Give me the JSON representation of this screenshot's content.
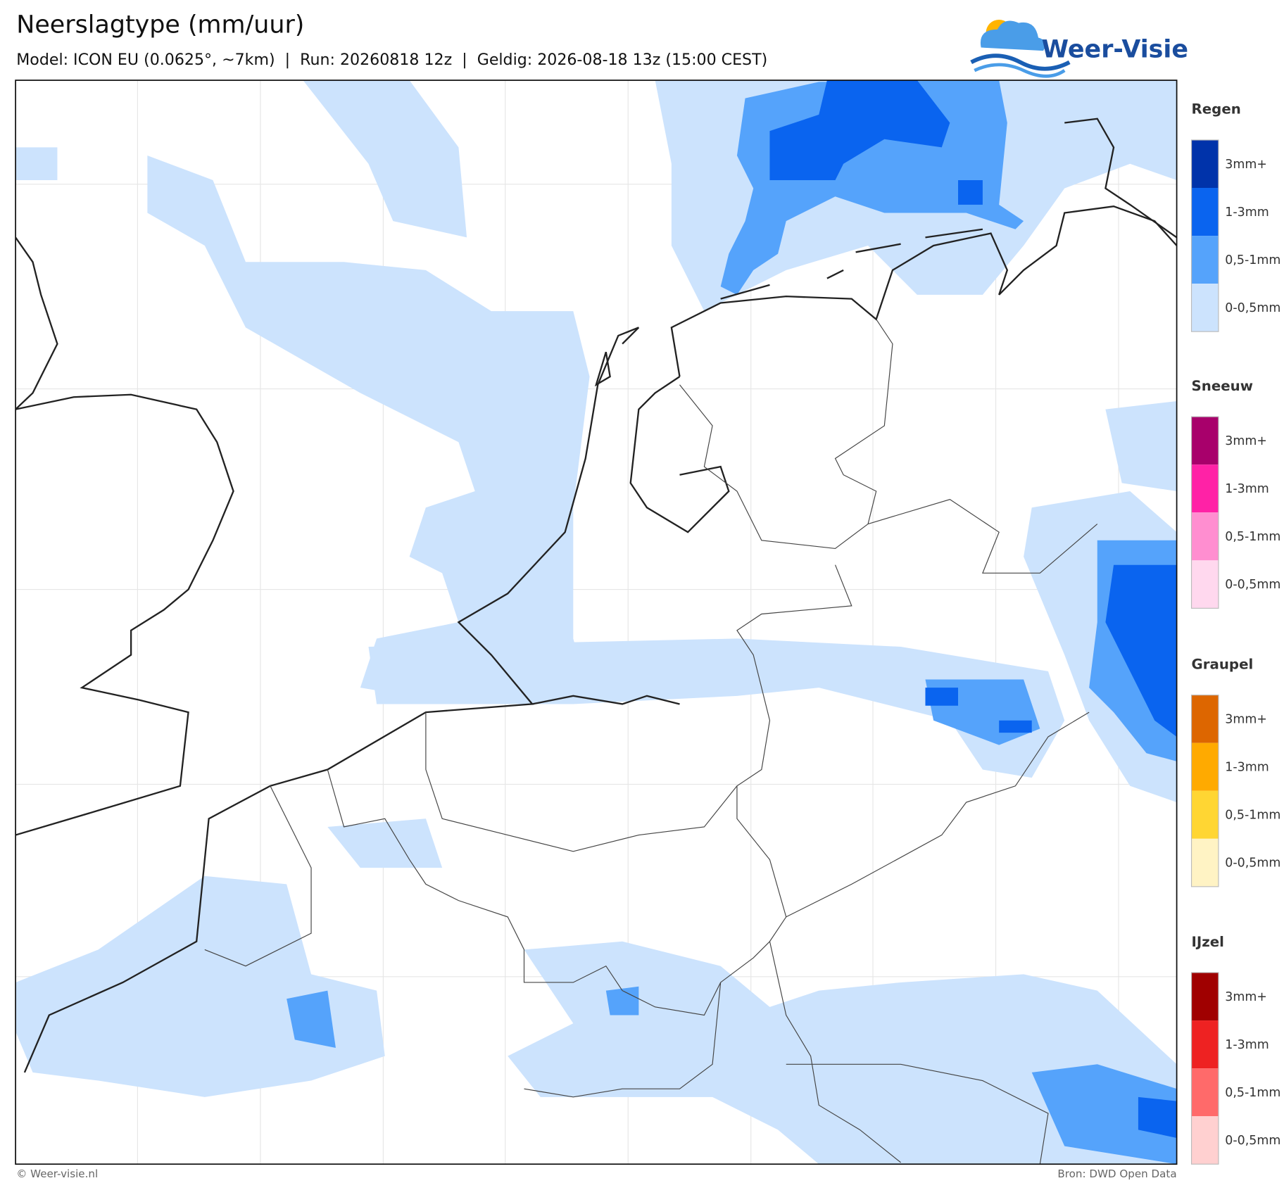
{
  "header": {
    "title": "Neerslagtype (mm/uur)",
    "subtitle": "Model: ICON EU (0.0625°, ~7km)  |  Run: 20260818 12z  |  Geldig: 2026-08-18 13z (15:00 CEST)"
  },
  "logo": {
    "text": "Weer-Visie"
  },
  "legend": {
    "groups": [
      {
        "title": "Regen",
        "items": [
          {
            "label": "3mm+",
            "color": "#0033aa"
          },
          {
            "label": "1-3mm",
            "color": "#0a64ef"
          },
          {
            "label": "0,5-1mm",
            "color": "#55a3fb"
          },
          {
            "label": "0-0,5mm",
            "color": "#cce3fd"
          }
        ]
      },
      {
        "title": "Sneeuw",
        "items": [
          {
            "label": "3mm+",
            "color": "#a8006b"
          },
          {
            "label": "1-3mm",
            "color": "#ff22a6"
          },
          {
            "label": "0,5-1mm",
            "color": "#ff8ed0"
          },
          {
            "label": "0-0,5mm",
            "color": "#ffd8ee"
          }
        ]
      },
      {
        "title": "Graupel",
        "items": [
          {
            "label": "3mm+",
            "color": "#dd6600"
          },
          {
            "label": "1-3mm",
            "color": "#ffaa00"
          },
          {
            "label": "0,5-1mm",
            "color": "#ffd633"
          },
          {
            "label": "0-0,5mm",
            "color": "#fff3c4"
          }
        ]
      },
      {
        "title": "IJzel",
        "items": [
          {
            "label": "3mm+",
            "color": "#a00000"
          },
          {
            "label": "1-3mm",
            "color": "#ee2222"
          },
          {
            "label": "0,5-1mm",
            "color": "#ff6a6a"
          },
          {
            "label": "0-0,5mm",
            "color": "#ffd0d0"
          }
        ]
      }
    ]
  },
  "footer": {
    "left": "© Weer-visie.nl",
    "right": "Bron: DWD Open Data"
  }
}
